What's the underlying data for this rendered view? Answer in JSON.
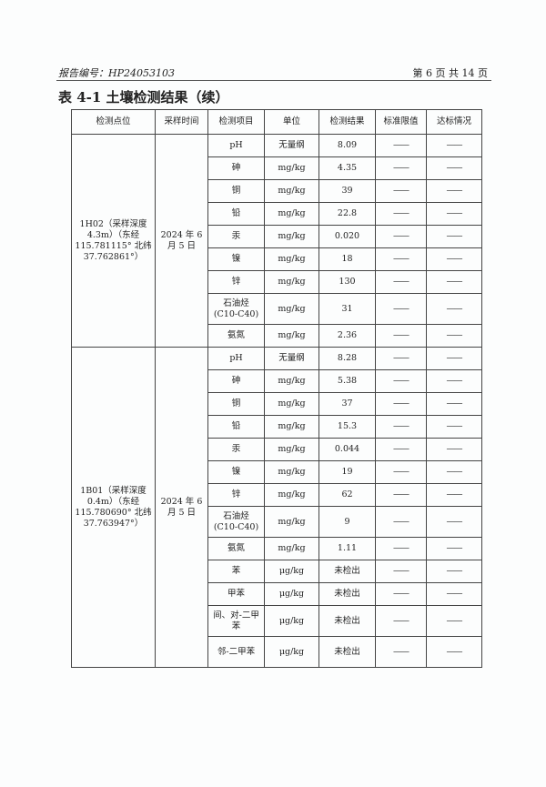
{
  "header": {
    "report_no": "报告编号：HP24053103",
    "page": "第 6 页 共 14 页"
  },
  "title": "表 4-1 土壤检测结果（续）",
  "columns": [
    "检测点位",
    "采样时间",
    "检测项目",
    "单位",
    "检测结果",
    "标准限值",
    "达标情况"
  ],
  "dash": "——",
  "groups": [
    {
      "site": "1H02（采样深度4.3m）（东经115.781115° 北纬 37.762861°）",
      "date": "2024 年 6 月 5 日",
      "rows": [
        [
          "pH",
          "无量纲",
          "8.09"
        ],
        [
          "砷",
          "mg/kg",
          "4.35"
        ],
        [
          "铜",
          "mg/kg",
          "39"
        ],
        [
          "铅",
          "mg/kg",
          "22.8"
        ],
        [
          "汞",
          "mg/kg",
          "0.020"
        ],
        [
          "镍",
          "mg/kg",
          "18"
        ],
        [
          "锌",
          "mg/kg",
          "130"
        ],
        [
          "石油烃 (C10-C40)",
          "mg/kg",
          "31"
        ],
        [
          "氨氮",
          "mg/kg",
          "2.36"
        ]
      ]
    },
    {
      "site": "1B01（采样深度 0.4m）（东经 115.780690° 北纬 37.763947°）",
      "date": "2024 年 6 月 5 日",
      "rows": [
        [
          "pH",
          "无量纲",
          "8.28"
        ],
        [
          "砷",
          "mg/kg",
          "5.38"
        ],
        [
          "铜",
          "mg/kg",
          "37"
        ],
        [
          "铅",
          "mg/kg",
          "15.3"
        ],
        [
          "汞",
          "mg/kg",
          "0.044"
        ],
        [
          "镍",
          "mg/kg",
          "19"
        ],
        [
          "锌",
          "mg/kg",
          "62"
        ],
        [
          "石油烃 (C10-C40)",
          "mg/kg",
          "9"
        ],
        [
          "氨氮",
          "mg/kg",
          "1.11"
        ],
        [
          "苯",
          "μg/kg",
          "未检出"
        ],
        [
          "甲苯",
          "μg/kg",
          "未检出"
        ],
        [
          "间、对-二甲苯",
          "μg/kg",
          "未检出"
        ],
        [
          "邻-二甲苯",
          "μg/kg",
          "未检出"
        ]
      ]
    }
  ]
}
